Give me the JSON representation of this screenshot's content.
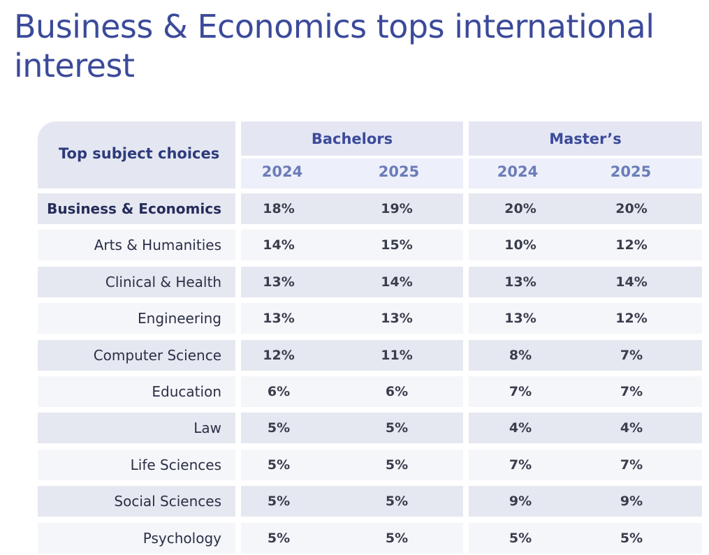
{
  "title": "Business & Economics tops international interest",
  "header": {
    "corner_label": "Top subject choices",
    "groups": [
      {
        "label": "Bachelors",
        "years": [
          "2024",
          "2025"
        ]
      },
      {
        "label": "Master’s",
        "years": [
          "2024",
          "2025"
        ]
      }
    ]
  },
  "rows": [
    {
      "subject": "Business & Economics",
      "bold": true,
      "values": [
        "18%",
        "19%",
        "20%",
        "20%"
      ]
    },
    {
      "subject": "Arts & Humanities",
      "bold": false,
      "values": [
        "14%",
        "15%",
        "10%",
        "12%"
      ]
    },
    {
      "subject": "Clinical & Health",
      "bold": false,
      "values": [
        "13%",
        "14%",
        "13%",
        "14%"
      ]
    },
    {
      "subject": "Engineering",
      "bold": false,
      "values": [
        "13%",
        "13%",
        "13%",
        "12%"
      ]
    },
    {
      "subject": "Computer Science",
      "bold": false,
      "values": [
        "12%",
        "11%",
        "8%",
        "7%"
      ]
    },
    {
      "subject": "Education",
      "bold": false,
      "values": [
        "6%",
        "6%",
        "7%",
        "7%"
      ]
    },
    {
      "subject": "Law",
      "bold": false,
      "values": [
        "5%",
        "5%",
        "4%",
        "4%"
      ]
    },
    {
      "subject": "Life Sciences",
      "bold": false,
      "values": [
        "5%",
        "5%",
        "7%",
        "7%"
      ]
    },
    {
      "subject": "Social Sciences",
      "bold": false,
      "values": [
        "5%",
        "5%",
        "9%",
        "9%"
      ]
    },
    {
      "subject": "Psychology",
      "bold": false,
      "values": [
        "5%",
        "5%",
        "5%",
        "5%"
      ]
    }
  ],
  "colors": {
    "title": "#3b4a9a",
    "row_shaded": "#e6e8f1",
    "row_light": "#f5f6fa",
    "header_top": "#e4e7f3",
    "header_year": "#edeffa"
  }
}
